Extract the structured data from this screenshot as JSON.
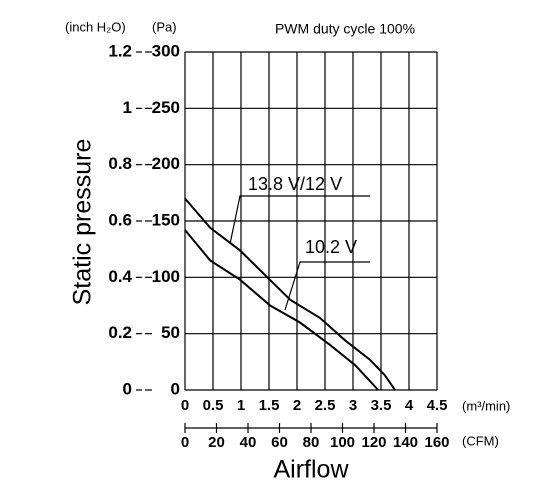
{
  "chart_data": {
    "type": "line",
    "title": "PWM duty cycle 100%",
    "ylabel": "Static pressure",
    "xlabel": "Airflow",
    "y_unit": "(Pa)",
    "y2_unit": "(inch H₂O)",
    "x_unit": "(m³/min)",
    "x2_unit": "(CFM)",
    "xlim": [
      0,
      4.5
    ],
    "xticks": [
      0,
      0.5,
      1.0,
      1.5,
      2.0,
      2.5,
      3.0,
      3.5,
      4.0,
      4.5
    ],
    "x2lim": [
      0,
      160
    ],
    "x2ticks": [
      0,
      20,
      40,
      60,
      80,
      100,
      120,
      140,
      160
    ],
    "ylim": [
      0,
      300
    ],
    "yticks": [
      0,
      50,
      100,
      150,
      200,
      250,
      300
    ],
    "y2lim": [
      0,
      1.2
    ],
    "y2ticks": [
      0,
      0.2,
      0.4,
      0.6,
      0.8,
      1.0,
      1.2
    ],
    "grid": true,
    "series": [
      {
        "name": "13.8 V/12 V",
        "color": "#000000",
        "x": [
          0,
          0.45,
          0.98,
          1.43,
          1.88,
          2.41,
          2.86,
          3.3,
          3.57,
          3.75
        ],
        "values": [
          170,
          144,
          124,
          102,
          80,
          64,
          44,
          27,
          13,
          0
        ]
      },
      {
        "name": "10.2 V",
        "color": "#000000",
        "x": [
          0,
          0.45,
          0.98,
          1.52,
          2.05,
          2.59,
          3.04,
          3.45
        ],
        "values": [
          142,
          115,
          98,
          75,
          60,
          40,
          22,
          0
        ]
      }
    ]
  }
}
